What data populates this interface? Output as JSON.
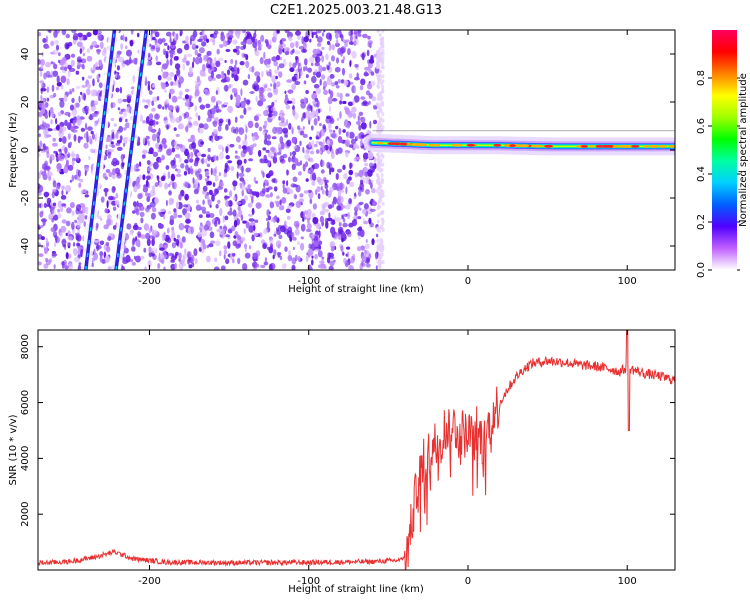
{
  "page_title": "C2E1.2025.003.21.48.G13",
  "chart_data": [
    {
      "type": "heatmap",
      "title": "C2E1.2025.003.21.48.G13",
      "xlabel": "Height of straight line (km)",
      "ylabel": "Frequency (Hz)",
      "xlim": [
        -270,
        130
      ],
      "ylim": [
        -50,
        50
      ],
      "xticks": [
        -200,
        -100,
        0,
        100
      ],
      "yticks": [
        -40,
        -20,
        0,
        20,
        40
      ],
      "grid": false,
      "noise_region_x": [
        -270,
        -57
      ],
      "signal_band": {
        "x_start": -60,
        "x_end": 130,
        "freq": [
          3,
          2,
          2,
          1.5,
          1.5,
          1.5
        ]
      },
      "tracks": [
        {
          "x_at_bottom": -240,
          "x_at_top": -222
        },
        {
          "x_at_bottom": -221,
          "x_at_top": -202
        }
      ],
      "colorbar": {
        "label": "Normalized spectral amplitude",
        "range": [
          0,
          1
        ],
        "ticks": [
          0.0,
          0.2,
          0.4,
          0.6,
          0.8
        ],
        "tick_labels": [
          "0.0",
          "0.2",
          "0.4",
          "0.6",
          "0.8"
        ],
        "colors": [
          "#ffffff",
          "#c060ff",
          "#5000ff",
          "#0060ff",
          "#00d0ff",
          "#00ffa0",
          "#00ff00",
          "#a0ff00",
          "#ffff00",
          "#ff8000",
          "#ff0000",
          "#ff0060"
        ]
      }
    },
    {
      "type": "line",
      "xlabel": "Height of straight line (km)",
      "ylabel": "SNR (10 * v/v)",
      "xlim": [
        -270,
        130
      ],
      "ylim": [
        0,
        8600
      ],
      "xticks": [
        -200,
        -100,
        0,
        100
      ],
      "yticks": [
        2000,
        4000,
        6000,
        8000
      ],
      "grid": false,
      "color": "#e83030",
      "series": [
        {
          "x": [
            -270,
            -250,
            -235,
            -222,
            -210,
            -190,
            -150,
            -100,
            -60,
            -42,
            -38,
            -35,
            -32,
            -28,
            -24,
            -20,
            -15,
            -10,
            -5,
            0,
            5,
            10,
            15,
            20,
            25,
            30,
            35,
            40,
            50,
            60,
            70,
            80,
            90,
            95,
            100,
            105,
            110,
            120,
            130
          ],
          "y": [
            250,
            300,
            450,
            650,
            400,
            280,
            260,
            270,
            300,
            350,
            700,
            1800,
            3000,
            3800,
            4200,
            4600,
            5000,
            5200,
            5000,
            4800,
            5100,
            4500,
            5600,
            6000,
            6500,
            6900,
            7200,
            7400,
            7500,
            7450,
            7350,
            7300,
            7200,
            7100,
            7250,
            7150,
            7050,
            6950,
            6800
          ]
        }
      ]
    }
  ]
}
